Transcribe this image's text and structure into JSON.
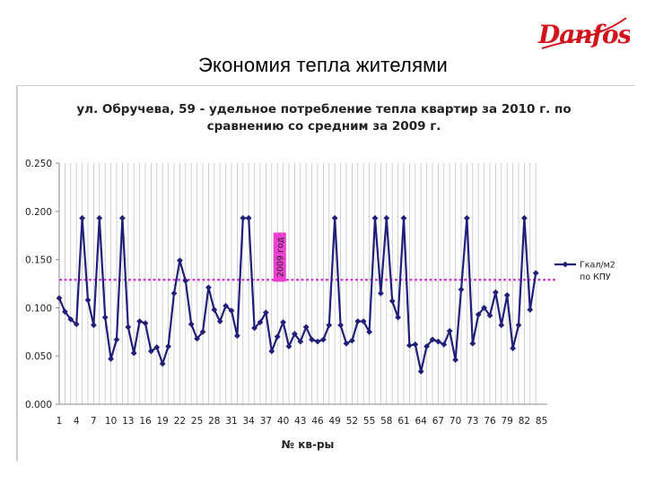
{
  "slide": {
    "title": "Экономия тепла жителями",
    "logo_text": "Danfoss"
  },
  "colors": {
    "series": "#1f1f7a",
    "average_line": "#d640d6",
    "annotation_box": "#ee3fd3",
    "grid": "#bdbdbd",
    "logo": "#d2131b"
  },
  "chart_data": {
    "type": "line",
    "title_line1": "ул. Обручева, 59  - удельное потребление тепла квартир за 2010 г. по",
    "title_line2": "сравнению со средним за  2009 г.",
    "xlabel": "№ кв-ры",
    "ylabel": "",
    "ylim": [
      0,
      0.25
    ],
    "yticks": [
      "0.000",
      "0.050",
      "0.100",
      "0.150",
      "0.200",
      "0.250"
    ],
    "xticks": [
      "1",
      "4",
      "7",
      "10",
      "13",
      "16",
      "19",
      "22",
      "25",
      "28",
      "31",
      "34",
      "37",
      "40",
      "43",
      "46",
      "49",
      "52",
      "55",
      "58",
      "61",
      "64",
      "67",
      "70",
      "73",
      "76",
      "79",
      "82",
      "85"
    ],
    "x_range": [
      1,
      86
    ],
    "vertical_grid": true,
    "legend": {
      "position": "right",
      "label_line1": "Гкал/м2",
      "label_line2": "по КПУ"
    },
    "average_2009": {
      "value": 0.129,
      "label": "2009 год"
    },
    "series": [
      {
        "name": "Гкал/м2 по КПУ",
        "values": [
          0.11,
          0.096,
          0.088,
          0.083,
          0.193,
          0.108,
          0.082,
          0.193,
          0.09,
          0.047,
          0.067,
          0.193,
          0.08,
          0.053,
          0.086,
          0.084,
          0.055,
          0.059,
          0.042,
          0.06,
          0.115,
          0.149,
          0.128,
          0.083,
          0.068,
          0.075,
          0.121,
          0.098,
          0.086,
          0.102,
          0.097,
          0.071,
          0.193,
          0.193,
          0.079,
          0.085,
          0.095,
          0.055,
          0.07,
          0.085,
          0.06,
          0.073,
          0.065,
          0.08,
          0.067,
          0.065,
          0.067,
          0.082,
          0.193,
          0.082,
          0.063,
          0.066,
          0.086,
          0.086,
          0.075,
          0.193,
          0.115,
          0.193,
          0.107,
          0.09,
          0.193,
          0.061,
          0.062,
          0.034,
          0.06,
          0.067,
          0.065,
          0.062,
          0.076,
          0.046,
          0.119,
          0.193,
          0.063,
          0.093,
          0.1,
          0.092,
          0.116,
          0.082,
          0.113,
          0.058,
          0.082,
          0.193,
          0.098,
          0.136
        ]
      }
    ]
  }
}
